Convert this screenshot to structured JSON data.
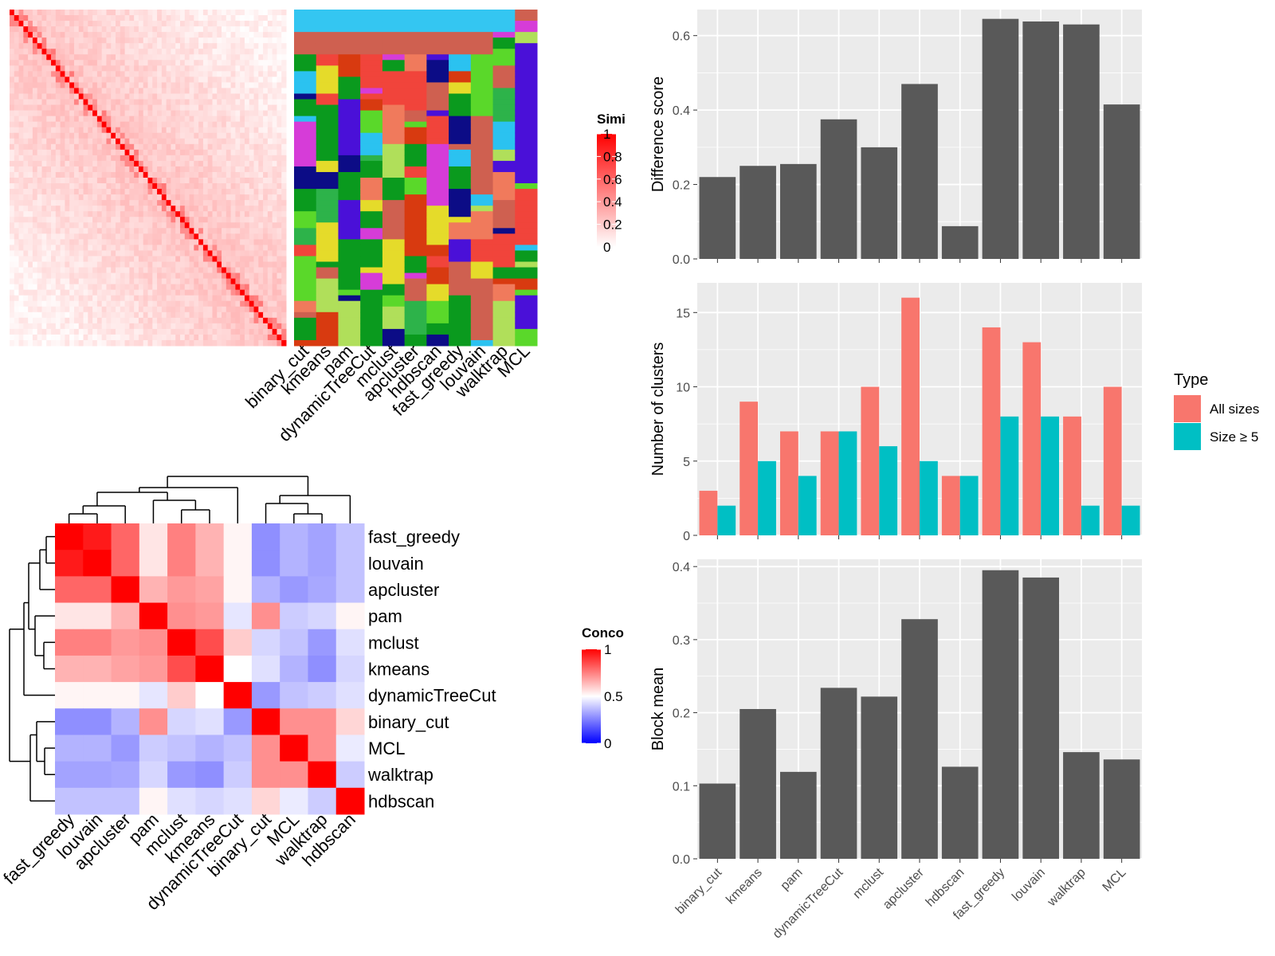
{
  "methods": [
    "binary_cut",
    "kmeans",
    "pam",
    "dynamicTreeCut",
    "mclust",
    "apcluster",
    "hdbscan",
    "fast_greedy",
    "louvain",
    "walktrap",
    "MCL"
  ],
  "similarity_heatmap": {
    "legend_title": "Similarity",
    "legend_ticks": [
      "1",
      "0.8",
      "0.6",
      "0.4",
      "0.2",
      "0"
    ],
    "column_labels": [
      "binary_cut",
      "kmeans",
      "pam",
      "dynamicTreeCut",
      "mclust",
      "apcluster",
      "hdbscan",
      "fast_greedy",
      "louvain",
      "walktrap",
      "MCL"
    ],
    "colors": {
      "low": "#ffffff",
      "high": "#ff0000"
    }
  },
  "concordance_heatmap": {
    "legend_title": "Concordance",
    "legend_ticks": [
      "1",
      "0.5",
      "0"
    ],
    "order": [
      "fast_greedy",
      "louvain",
      "apcluster",
      "pam",
      "mclust",
      "kmeans",
      "dynamicTreeCut",
      "binary_cut",
      "MCL",
      "walktrap",
      "hdbscan"
    ],
    "colors": {
      "low": "#0000ff",
      "mid": "#ffffff",
      "high": "#ff0000"
    }
  },
  "legend_type": {
    "title": "Type",
    "items": [
      {
        "label": "All sizes",
        "color": "#F8766D"
      },
      {
        "label": "Size ≥ 5",
        "color": "#00BFC4"
      }
    ]
  },
  "chart_data": [
    {
      "type": "bar",
      "categories": [
        "binary_cut",
        "kmeans",
        "pam",
        "dynamicTreeCut",
        "mclust",
        "apcluster",
        "hdbscan",
        "fast_greedy",
        "louvain",
        "walktrap",
        "MCL"
      ],
      "values": [
        0.22,
        0.25,
        0.255,
        0.375,
        0.3,
        0.47,
        0.088,
        0.645,
        0.638,
        0.63,
        0.415
      ],
      "ylabel": "Difference score",
      "ylim": [
        0,
        0.67
      ],
      "yticks": [
        "0.0",
        "0.2",
        "0.4",
        "0.6"
      ],
      "color": "#595959"
    },
    {
      "type": "bar",
      "categories": [
        "binary_cut",
        "kmeans",
        "pam",
        "dynamicTreeCut",
        "mclust",
        "apcluster",
        "hdbscan",
        "fast_greedy",
        "louvain",
        "walktrap",
        "MCL"
      ],
      "series": [
        {
          "name": "All sizes",
          "values": [
            3,
            9,
            7,
            7,
            10,
            16,
            4,
            14,
            13,
            8,
            10
          ]
        },
        {
          "name": "Size ≥ 5",
          "values": [
            2,
            5,
            4,
            7,
            6,
            5,
            4,
            8,
            8,
            2,
            2
          ]
        }
      ],
      "ylabel": "Number of clusters",
      "ylim": [
        0,
        17
      ],
      "yticks": [
        "0",
        "5",
        "10",
        "15"
      ]
    },
    {
      "type": "bar",
      "categories": [
        "binary_cut",
        "kmeans",
        "pam",
        "dynamicTreeCut",
        "mclust",
        "apcluster",
        "hdbscan",
        "fast_greedy",
        "louvain",
        "walktrap",
        "MCL"
      ],
      "values": [
        0.103,
        0.205,
        0.119,
        0.234,
        0.222,
        0.328,
        0.126,
        0.395,
        0.385,
        0.146,
        0.136
      ],
      "ylabel": "Block mean",
      "ylim": [
        0,
        0.41
      ],
      "yticks": [
        "0.0",
        "0.1",
        "0.2",
        "0.3",
        "0.4"
      ],
      "color": "#595959"
    }
  ]
}
